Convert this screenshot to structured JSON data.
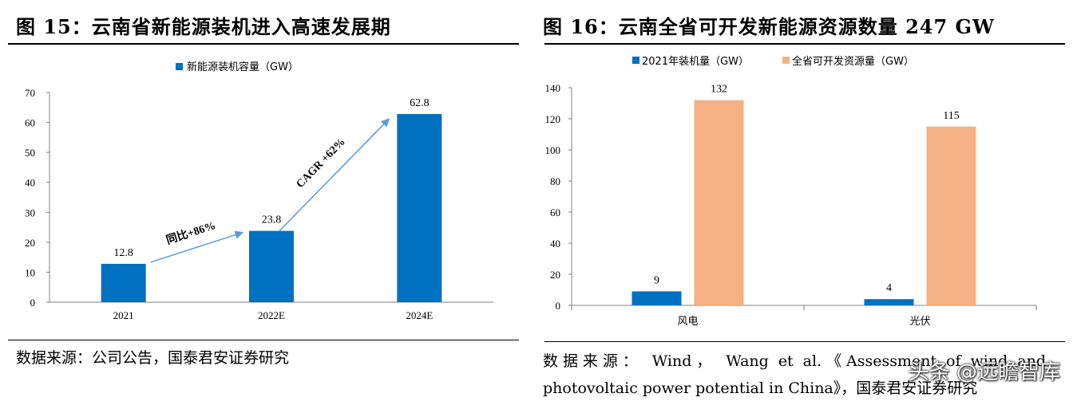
{
  "left": {
    "title": "图 15：云南省新能源装机进入高速发展期",
    "source": "数据来源：公司公告，国泰君安证券研究"
  },
  "right": {
    "title": "图 16：云南全省可开发新能源资源数量 247 GW",
    "source_line1": "数据来源： Wind， Wang et al.《Assessment of wind and",
    "source_line2": "photovoltaic power potential in China》，国泰君安证券研究"
  },
  "watermark": "头条 @远瞻智库",
  "colors": {
    "blue": "#0070C0",
    "orange": "#F4B183",
    "arrow": "#5B9BD5"
  },
  "chart_data": [
    {
      "type": "bar",
      "categories": [
        "2021",
        "2022E",
        "2024E"
      ],
      "series": [
        {
          "name": "新能源装机容量（GW）",
          "values": [
            12.8,
            23.8,
            62.8
          ]
        }
      ],
      "ylim": [
        0,
        70
      ],
      "yticks": [
        0,
        10,
        20,
        30,
        40,
        50,
        60,
        70
      ],
      "legend": "top-center",
      "grid": false,
      "annotations": [
        "同比+86%",
        "CAGR +62%"
      ]
    },
    {
      "type": "bar",
      "categories": [
        "风电",
        "光伏"
      ],
      "series": [
        {
          "name": "2021年装机量（GW）",
          "values": [
            9,
            4
          ]
        },
        {
          "name": "全省可开发资源量（GW）",
          "values": [
            132,
            115
          ]
        }
      ],
      "ylim": [
        0,
        140
      ],
      "yticks": [
        0,
        20,
        40,
        60,
        80,
        100,
        120,
        140
      ],
      "legend": "top-center",
      "grid": false
    }
  ]
}
